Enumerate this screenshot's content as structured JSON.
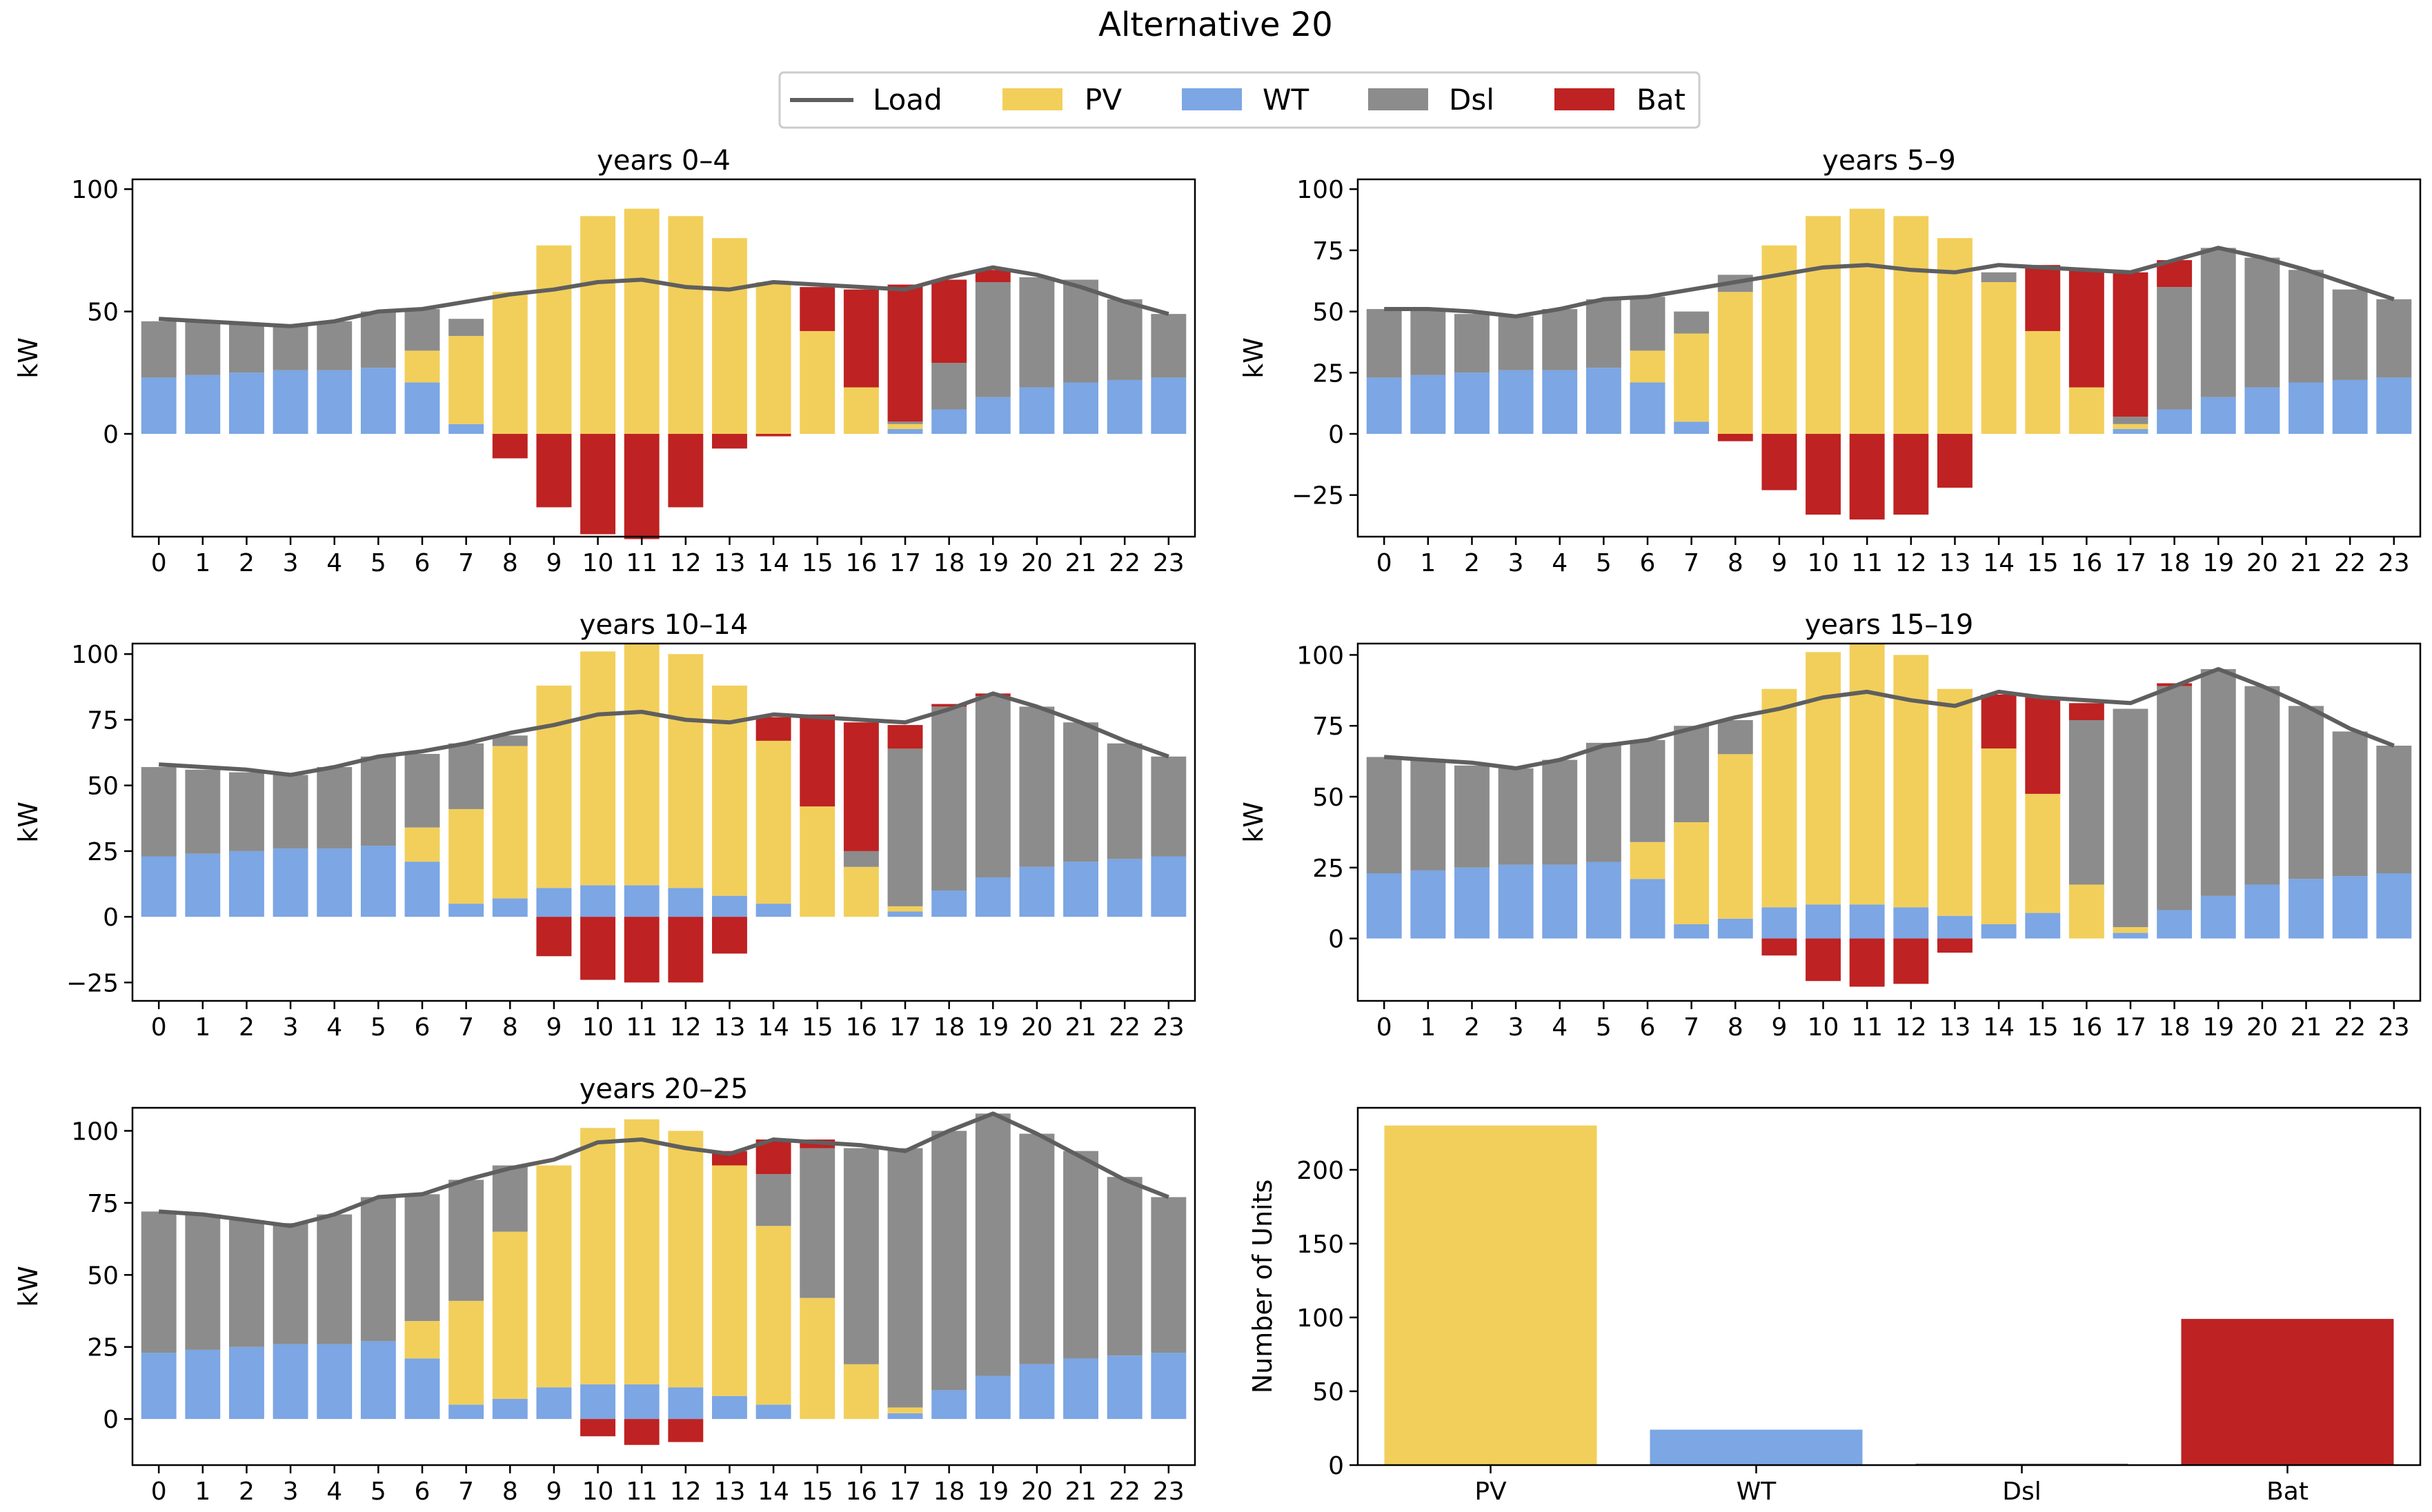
{
  "title": "Alternative 20",
  "legend": {
    "position": "top-center",
    "entries": [
      {
        "key": "Load",
        "label": "Load",
        "kind": "line"
      },
      {
        "key": "PV",
        "label": "PV",
        "kind": "patch"
      },
      {
        "key": "WT",
        "label": "WT",
        "kind": "patch"
      },
      {
        "key": "Dsl",
        "label": "Dsl",
        "kind": "patch"
      },
      {
        "key": "Bat",
        "label": "Bat",
        "kind": "patch"
      }
    ]
  },
  "colors": {
    "Load": "#5f5f5f",
    "PV": "#f2cf5b",
    "WT": "#7ca6e4",
    "Dsl": "#8c8c8c",
    "Bat": "#be2222"
  },
  "chart_data": [
    {
      "type": "bar",
      "stacked": true,
      "title": "years 0–4",
      "xlabel": "",
      "ylabel": "kW",
      "categories": [
        "0",
        "1",
        "2",
        "3",
        "4",
        "5",
        "6",
        "7",
        "8",
        "9",
        "10",
        "11",
        "12",
        "13",
        "14",
        "15",
        "16",
        "17",
        "18",
        "19",
        "20",
        "21",
        "22",
        "23"
      ],
      "ylim": [
        -42,
        104
      ],
      "yticks": [
        0,
        50,
        100
      ],
      "yticklabels": [
        "0",
        "50",
        "100"
      ],
      "series": [
        {
          "name": "WT",
          "values": [
            23,
            24,
            25,
            26,
            26,
            27,
            21,
            4,
            0,
            0,
            0,
            0,
            0,
            0,
            0,
            0,
            0,
            2,
            10,
            15,
            19,
            21,
            22,
            23
          ]
        },
        {
          "name": "PV",
          "values": [
            0,
            0,
            0,
            0,
            0,
            0,
            13,
            36,
            58,
            77,
            89,
            92,
            89,
            80,
            62,
            42,
            19,
            2,
            0,
            0,
            0,
            0,
            0,
            0
          ]
        },
        {
          "name": "Dsl",
          "values": [
            23,
            22,
            20,
            18,
            20,
            23,
            17,
            7,
            0,
            0,
            0,
            0,
            0,
            0,
            0,
            0,
            0,
            1,
            19,
            47,
            45,
            42,
            33,
            26
          ]
        },
        {
          "name": "Bat",
          "values": [
            0,
            0,
            0,
            0,
            0,
            0,
            0,
            0,
            -10,
            -30,
            -41,
            -43,
            -30,
            -6,
            -1,
            18,
            40,
            56,
            34,
            5,
            0,
            0,
            0,
            0
          ]
        },
        {
          "name": "Load",
          "type": "line",
          "values": [
            47,
            46,
            45,
            44,
            46,
            50,
            51,
            54,
            57,
            59,
            62,
            63,
            60,
            59,
            62,
            61,
            60,
            59,
            64,
            68,
            65,
            60,
            54,
            49
          ]
        }
      ]
    },
    {
      "type": "bar",
      "stacked": true,
      "title": "years 5–9",
      "xlabel": "",
      "ylabel": "kW",
      "categories": [
        "0",
        "1",
        "2",
        "3",
        "4",
        "5",
        "6",
        "7",
        "8",
        "9",
        "10",
        "11",
        "12",
        "13",
        "14",
        "15",
        "16",
        "17",
        "18",
        "19",
        "20",
        "21",
        "22",
        "23"
      ],
      "ylim": [
        -42,
        104
      ],
      "yticks": [
        -25,
        0,
        25,
        50,
        75,
        100
      ],
      "yticklabels": [
        "−25",
        "0",
        "25",
        "50",
        "75",
        "100"
      ],
      "series": [
        {
          "name": "WT",
          "values": [
            23,
            24,
            25,
            26,
            26,
            27,
            21,
            5,
            0,
            0,
            0,
            0,
            0,
            0,
            0,
            0,
            0,
            2,
            10,
            15,
            19,
            21,
            22,
            23
          ]
        },
        {
          "name": "PV",
          "values": [
            0,
            0,
            0,
            0,
            0,
            0,
            13,
            36,
            58,
            77,
            89,
            92,
            89,
            80,
            62,
            42,
            19,
            2,
            0,
            0,
            0,
            0,
            0,
            0
          ]
        },
        {
          "name": "Dsl",
          "values": [
            28,
            27,
            24,
            22,
            25,
            28,
            22,
            9,
            7,
            0,
            0,
            0,
            0,
            0,
            4,
            0,
            0,
            3,
            50,
            61,
            53,
            46,
            37,
            32
          ]
        },
        {
          "name": "Bat",
          "values": [
            0,
            0,
            0,
            0,
            0,
            0,
            0,
            0,
            -3,
            -23,
            -33,
            -35,
            -33,
            -22,
            0,
            27,
            48,
            59,
            11,
            0,
            0,
            0,
            0,
            0
          ]
        },
        {
          "name": "Load",
          "type": "line",
          "values": [
            51,
            51,
            50,
            48,
            51,
            55,
            56,
            59,
            62,
            65,
            68,
            69,
            67,
            66,
            69,
            68,
            67,
            66,
            71,
            76,
            72,
            67,
            61,
            55
          ]
        }
      ]
    },
    {
      "type": "bar",
      "stacked": true,
      "title": "years 10–14",
      "xlabel": "",
      "ylabel": "kW",
      "categories": [
        "0",
        "1",
        "2",
        "3",
        "4",
        "5",
        "6",
        "7",
        "8",
        "9",
        "10",
        "11",
        "12",
        "13",
        "14",
        "15",
        "16",
        "17",
        "18",
        "19",
        "20",
        "21",
        "22",
        "23"
      ],
      "ylim": [
        -32,
        104
      ],
      "yticks": [
        -25,
        0,
        25,
        50,
        75,
        100
      ],
      "yticklabels": [
        "−25",
        "0",
        "25",
        "50",
        "75",
        "100"
      ],
      "series": [
        {
          "name": "WT",
          "values": [
            23,
            24,
            25,
            26,
            26,
            27,
            21,
            5,
            7,
            11,
            12,
            12,
            11,
            8,
            5,
            0,
            0,
            2,
            10,
            15,
            19,
            21,
            22,
            23
          ]
        },
        {
          "name": "PV",
          "values": [
            0,
            0,
            0,
            0,
            0,
            0,
            13,
            36,
            58,
            77,
            89,
            92,
            89,
            80,
            62,
            42,
            19,
            2,
            0,
            0,
            0,
            0,
            0,
            0
          ]
        },
        {
          "name": "Dsl",
          "values": [
            34,
            32,
            30,
            28,
            31,
            34,
            28,
            25,
            4,
            0,
            0,
            0,
            0,
            0,
            0,
            0,
            6,
            60,
            70,
            69,
            61,
            53,
            44,
            38
          ]
        },
        {
          "name": "Bat",
          "values": [
            0,
            0,
            0,
            0,
            0,
            0,
            0,
            0,
            0,
            -15,
            -24,
            -25,
            -25,
            -14,
            9,
            35,
            49,
            9,
            1,
            1,
            0,
            0,
            0,
            0
          ]
        },
        {
          "name": "Load",
          "type": "line",
          "values": [
            58,
            57,
            56,
            54,
            57,
            61,
            63,
            66,
            70,
            73,
            77,
            78,
            75,
            74,
            77,
            76,
            75,
            74,
            79,
            85,
            80,
            74,
            67,
            61
          ]
        }
      ]
    },
    {
      "type": "bar",
      "stacked": true,
      "title": "years 15–19",
      "xlabel": "",
      "ylabel": "kW",
      "categories": [
        "0",
        "1",
        "2",
        "3",
        "4",
        "5",
        "6",
        "7",
        "8",
        "9",
        "10",
        "11",
        "12",
        "13",
        "14",
        "15",
        "16",
        "17",
        "18",
        "19",
        "20",
        "21",
        "22",
        "23"
      ],
      "ylim": [
        -22,
        104
      ],
      "yticks": [
        0,
        25,
        50,
        75,
        100
      ],
      "yticklabels": [
        "0",
        "25",
        "50",
        "75",
        "100"
      ],
      "series": [
        {
          "name": "WT",
          "values": [
            23,
            24,
            25,
            26,
            26,
            27,
            21,
            5,
            7,
            11,
            12,
            12,
            11,
            8,
            5,
            9,
            0,
            2,
            10,
            15,
            19,
            21,
            22,
            23
          ]
        },
        {
          "name": "PV",
          "values": [
            0,
            0,
            0,
            0,
            0,
            0,
            13,
            36,
            58,
            77,
            89,
            92,
            89,
            80,
            62,
            42,
            19,
            2,
            0,
            0,
            0,
            0,
            0,
            0
          ]
        },
        {
          "name": "Dsl",
          "values": [
            41,
            39,
            36,
            34,
            37,
            42,
            36,
            34,
            12,
            0,
            0,
            0,
            0,
            0,
            0,
            0,
            58,
            77,
            79,
            80,
            70,
            61,
            51,
            45
          ]
        },
        {
          "name": "Bat",
          "values": [
            0,
            0,
            0,
            0,
            0,
            0,
            0,
            0,
            0,
            -6,
            -15,
            -17,
            -16,
            -5,
            19,
            34,
            6,
            0,
            1,
            0,
            0,
            0,
            0,
            0
          ]
        },
        {
          "name": "Load",
          "type": "line",
          "values": [
            64,
            63,
            62,
            60,
            63,
            68,
            70,
            74,
            78,
            81,
            85,
            87,
            84,
            82,
            87,
            85,
            84,
            83,
            89,
            95,
            89,
            82,
            74,
            68
          ]
        }
      ]
    },
    {
      "type": "bar",
      "stacked": true,
      "title": "years 20–25",
      "xlabel": "",
      "ylabel": "kW",
      "categories": [
        "0",
        "1",
        "2",
        "3",
        "4",
        "5",
        "6",
        "7",
        "8",
        "9",
        "10",
        "11",
        "12",
        "13",
        "14",
        "15",
        "16",
        "17",
        "18",
        "19",
        "20",
        "21",
        "22",
        "23"
      ],
      "ylim": [
        -16,
        108
      ],
      "yticks": [
        0,
        25,
        50,
        75,
        100
      ],
      "yticklabels": [
        "0",
        "25",
        "50",
        "75",
        "100"
      ],
      "series": [
        {
          "name": "WT",
          "values": [
            23,
            24,
            25,
            26,
            26,
            27,
            21,
            5,
            7,
            11,
            12,
            12,
            11,
            8,
            5,
            0,
            0,
            2,
            10,
            15,
            19,
            21,
            22,
            23
          ]
        },
        {
          "name": "PV",
          "values": [
            0,
            0,
            0,
            0,
            0,
            0,
            13,
            36,
            58,
            77,
            89,
            92,
            89,
            80,
            62,
            42,
            19,
            2,
            0,
            0,
            0,
            0,
            0,
            0
          ]
        },
        {
          "name": "Dsl",
          "values": [
            49,
            47,
            44,
            42,
            45,
            50,
            44,
            42,
            23,
            0,
            0,
            0,
            0,
            0,
            18,
            52,
            75,
            90,
            90,
            91,
            80,
            72,
            62,
            54
          ]
        },
        {
          "name": "Bat",
          "values": [
            0,
            0,
            0,
            0,
            0,
            0,
            0,
            0,
            0,
            0,
            -6,
            -9,
            -8,
            5,
            12,
            3,
            0,
            0,
            0,
            0,
            0,
            0,
            0,
            0
          ]
        },
        {
          "name": "Load",
          "type": "line",
          "values": [
            72,
            71,
            69,
            67,
            71,
            77,
            78,
            83,
            87,
            90,
            96,
            97,
            94,
            92,
            97,
            96,
            95,
            93,
            100,
            106,
            99,
            91,
            83,
            77
          ]
        }
      ]
    },
    {
      "type": "bar",
      "stacked": false,
      "title": "",
      "xlabel": "",
      "ylabel": "Number of Units",
      "categories": [
        "PV",
        "WT",
        "Dsl",
        "Bat"
      ],
      "values": [
        230,
        24,
        1,
        99
      ],
      "ylim": [
        0,
        242
      ],
      "yticks": [
        0,
        50,
        100,
        150,
        200
      ],
      "yticklabels": [
        "0",
        "50",
        "100",
        "150",
        "200"
      ]
    }
  ]
}
